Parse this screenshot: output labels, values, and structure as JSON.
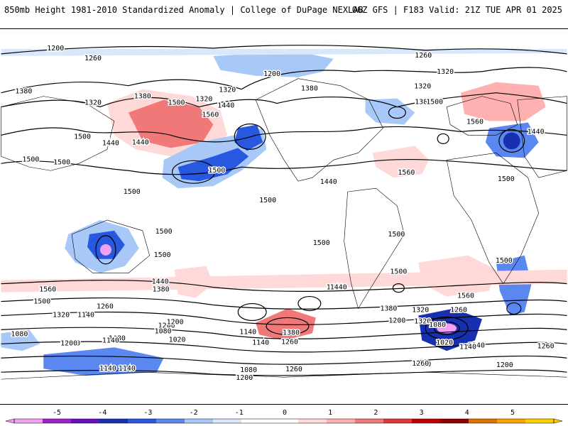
{
  "header": {
    "title_left": "850mb Height 1981-2010 Standardized Anomaly | College of DuPage NEXLAB",
    "title_right": "06Z GFS | F183 Valid: 21Z TUE APR 01 2025"
  },
  "colorbar": {
    "ticks": [
      "-5",
      "-4",
      "-3",
      "-2",
      "-1",
      "0",
      "1",
      "2",
      "3",
      "4",
      "5"
    ],
    "colors": [
      "#f2a0f2",
      "#a020d0",
      "#6a10c0",
      "#1830b0",
      "#2858e0",
      "#5a88f0",
      "#a8c8f8",
      "#d8e8fc",
      "#ffffff",
      "#ffffff",
      "#ffd8d8",
      "#ffb0b0",
      "#f07878",
      "#e03838",
      "#c00000",
      "#900000",
      "#e07000",
      "#ffa000",
      "#ffd000"
    ]
  },
  "contour_labels": [
    {
      "text": "1200"
    },
    {
      "text": "1260"
    },
    {
      "text": "1260"
    },
    {
      "text": "1200"
    },
    {
      "text": "1320"
    },
    {
      "text": "1320"
    },
    {
      "text": "1380"
    },
    {
      "text": "1320"
    },
    {
      "text": "1380"
    },
    {
      "text": "1320"
    },
    {
      "text": "1500"
    },
    {
      "text": "1440"
    },
    {
      "text": "1560"
    },
    {
      "text": "1380"
    },
    {
      "text": "1320"
    },
    {
      "text": "1380"
    },
    {
      "text": "1500"
    },
    {
      "text": "1560"
    },
    {
      "text": "1440"
    },
    {
      "text": "1500"
    },
    {
      "text": "1440"
    },
    {
      "text": "1500"
    },
    {
      "text": "1440"
    },
    {
      "text": "1500"
    },
    {
      "text": "1560"
    },
    {
      "text": "1500"
    },
    {
      "text": "1440"
    },
    {
      "text": "1500"
    },
    {
      "text": "1500"
    },
    {
      "text": "1500"
    },
    {
      "text": "1500"
    },
    {
      "text": "1500"
    },
    {
      "text": "1500"
    },
    {
      "text": "1500"
    },
    {
      "text": "1500"
    },
    {
      "text": "1440"
    },
    {
      "text": "1380"
    },
    {
      "text": "1560"
    },
    {
      "text": "1500"
    },
    {
      "text": "1440"
    },
    {
      "text": "1560"
    },
    {
      "text": "1500"
    },
    {
      "text": "1320"
    },
    {
      "text": "1260"
    },
    {
      "text": "1140"
    },
    {
      "text": "1200"
    },
    {
      "text": "1080"
    },
    {
      "text": "1080"
    },
    {
      "text": "1140"
    },
    {
      "text": "1020"
    },
    {
      "text": "1200"
    },
    {
      "text": "1140"
    },
    {
      "text": "1380"
    },
    {
      "text": "1320"
    },
    {
      "text": "1260"
    },
    {
      "text": "1380"
    },
    {
      "text": "1320"
    },
    {
      "text": "1260"
    },
    {
      "text": "1140"
    },
    {
      "text": "1080"
    },
    {
      "text": "1020"
    },
    {
      "text": "1140"
    },
    {
      "text": "1200"
    },
    {
      "text": "1080"
    },
    {
      "text": "1140"
    },
    {
      "text": "1260"
    },
    {
      "text": "1440"
    },
    {
      "text": "1380"
    },
    {
      "text": "1200"
    },
    {
      "text": "1140"
    },
    {
      "text": "1260"
    },
    {
      "text": "1200"
    },
    {
      "text": "1080"
    },
    {
      "text": "1200"
    },
    {
      "text": "1140"
    },
    {
      "text": "1260"
    },
    {
      "text": "1200"
    },
    {
      "text": "1260"
    },
    {
      "text": "1080"
    }
  ]
}
